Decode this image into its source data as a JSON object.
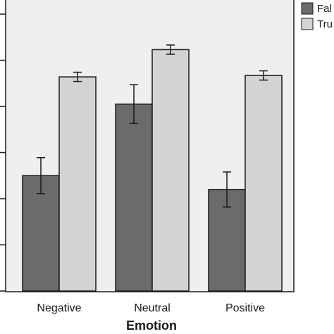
{
  "chart_data": {
    "type": "bar",
    "xlabel": "Emotion",
    "categories": [
      "Negative",
      "Neutral",
      "Positive"
    ],
    "ylim": [
      0,
      6
    ],
    "series": [
      {
        "name": "Fal",
        "color": "#6b6b6b",
        "values": [
          2.5,
          4.05,
          2.2
        ],
        "error": [
          0.39,
          0.42,
          0.38
        ]
      },
      {
        "name": "Tru",
        "color": "#d3d3d3",
        "values": [
          4.64,
          5.23,
          4.67
        ],
        "error": [
          0.1,
          0.1,
          0.1
        ]
      }
    ],
    "plot_background": "#efefef",
    "legend_position": "top-right"
  }
}
